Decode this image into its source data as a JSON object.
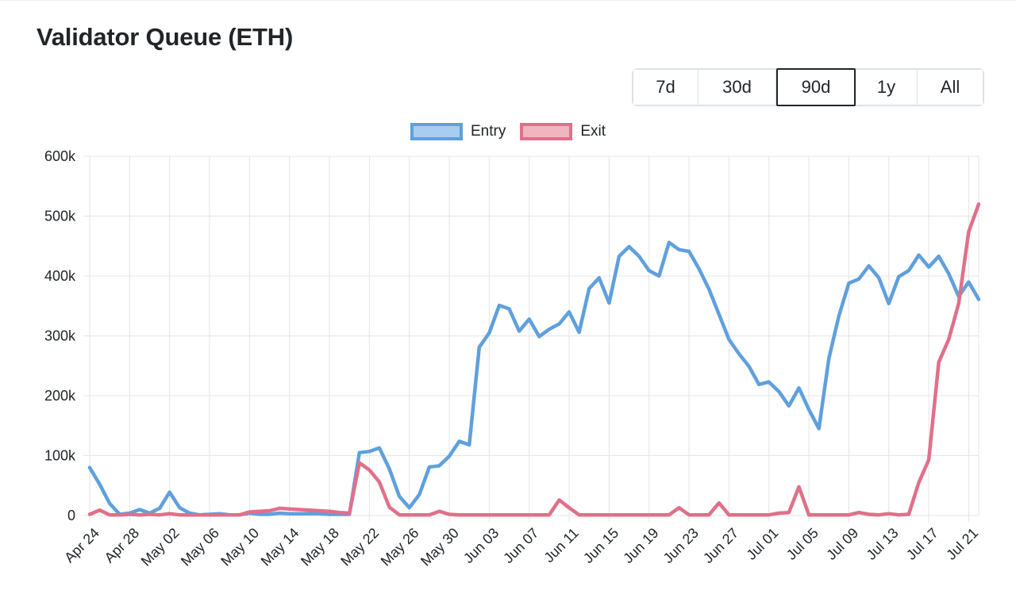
{
  "title": "Validator Queue (ETH)",
  "range_buttons": [
    {
      "label": "7d",
      "active": false
    },
    {
      "label": "30d",
      "active": false
    },
    {
      "label": "90d",
      "active": true
    },
    {
      "label": "1y",
      "active": false
    },
    {
      "label": "All",
      "active": false
    }
  ],
  "colors": {
    "entry_line": "#5fa0dd",
    "entry_fill": "#a9cdf0",
    "exit_line": "#e0708a",
    "exit_fill": "#f3b4c1",
    "grid": "#e4e4e4"
  },
  "chart_data": {
    "type": "line",
    "title": "Validator Queue (ETH)",
    "xlabel": "",
    "ylabel": "",
    "ylim": [
      0,
      600000
    ],
    "yticks": [
      "0",
      "100k",
      "200k",
      "300k",
      "400k",
      "500k",
      "600k"
    ],
    "x_tick_labels": [
      "Apr 24",
      "Apr 28",
      "May 02",
      "May 06",
      "May 10",
      "May 14",
      "May 18",
      "May 22",
      "May 26",
      "May 30",
      "Jun 03",
      "Jun 07",
      "Jun 11",
      "Jun 15",
      "Jun 19",
      "Jun 23",
      "Jun 27",
      "Jul 01",
      "Jul 05",
      "Jul 09",
      "Jul 13",
      "Jul 17",
      "Jul 21"
    ],
    "x_start": "Apr 24",
    "x_end": "Jul 23",
    "grid": true,
    "legend_position": "top-center",
    "series": [
      {
        "name": "Entry",
        "values": [
          80000,
          52000,
          20000,
          2000,
          4000,
          10000,
          4000,
          12000,
          39000,
          13000,
          4000,
          1000,
          2000,
          3000,
          1000,
          1000,
          4000,
          2000,
          2000,
          4000,
          3000,
          3000,
          3000,
          3000,
          2000,
          2000,
          2000,
          105000,
          107000,
          113000,
          78000,
          32000,
          13000,
          35000,
          81000,
          83000,
          99000,
          124000,
          118000,
          281000,
          305000,
          351000,
          345000,
          308000,
          328000,
          299000,
          311000,
          320000,
          340000,
          306000,
          379000,
          397000,
          355000,
          433000,
          449000,
          433000,
          409000,
          400000,
          456000,
          444000,
          441000,
          412000,
          378000,
          336000,
          294000,
          270000,
          249000,
          219000,
          223000,
          207000,
          183000,
          213000,
          177000,
          145000,
          262000,
          333000,
          388000,
          395000,
          417000,
          397000,
          354000,
          399000,
          409000,
          435000,
          415000,
          433000,
          404000,
          366000,
          390000,
          361000
        ]
      },
      {
        "name": "Exit",
        "values": [
          2000,
          9000,
          1000,
          1000,
          2000,
          1000,
          2000,
          1000,
          3000,
          1000,
          1000,
          1000,
          1000,
          1000,
          1000,
          1000,
          6000,
          7000,
          8000,
          12000,
          11000,
          10000,
          9000,
          8000,
          7000,
          5000,
          4000,
          88000,
          76000,
          56000,
          14000,
          1000,
          1000,
          1000,
          1000,
          7000,
          2000,
          1000,
          1000,
          1000,
          1000,
          1000,
          1000,
          1000,
          1000,
          1000,
          1000,
          26000,
          13000,
          1000,
          1000,
          1000,
          1000,
          1000,
          1000,
          1000,
          1000,
          1000,
          1000,
          13000,
          1000,
          1000,
          1000,
          21000,
          1000,
          1000,
          1000,
          1000,
          1000,
          4000,
          5000,
          48000,
          1000,
          1000,
          1000,
          1000,
          1000,
          5000,
          2000,
          1000,
          3000,
          1000,
          2000,
          55000,
          93000,
          256000,
          294000,
          354000,
          474000,
          520000
        ]
      }
    ]
  }
}
